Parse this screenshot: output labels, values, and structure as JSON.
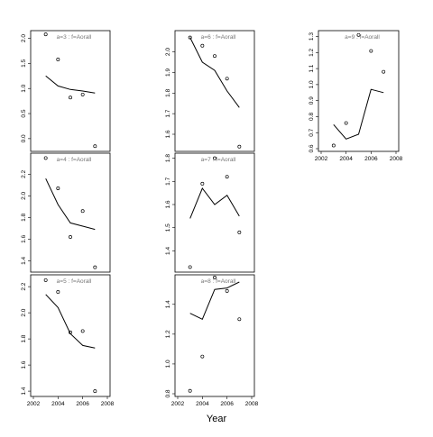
{
  "xlabel": "Year",
  "chart_data": [
    {
      "type": "scatter",
      "title": "a=3  :  f=Aorall",
      "x": [
        2003,
        2004,
        2005,
        2006,
        2007
      ],
      "points": [
        2.08,
        1.58,
        0.82,
        0.88,
        -0.15
      ],
      "line": [
        1.25,
        1.05,
        0.98,
        0.95,
        0.91
      ],
      "xlim": [
        2002,
        2008
      ],
      "ylim": [
        -0.2,
        2.1
      ],
      "xticks": [],
      "yticks": [
        0.0,
        0.5,
        1.0,
        1.5,
        2.0
      ],
      "ytick_labels": [
        "0.0",
        "0.5",
        "1.0",
        "1.5",
        "2.0"
      ]
    },
    {
      "type": "scatter",
      "title": "a=6  :  f=Aorall",
      "x": [
        2003,
        2004,
        2005,
        2006,
        2007
      ],
      "points": [
        2.07,
        2.03,
        1.98,
        1.87,
        1.54
      ],
      "line": [
        2.07,
        1.95,
        1.91,
        1.81,
        1.73
      ],
      "xlim": [
        2002,
        2008
      ],
      "ylim": [
        1.53,
        2.09
      ],
      "xticks": [],
      "yticks": [
        1.6,
        1.7,
        1.8,
        1.9,
        2.0
      ],
      "ytick_labels": [
        "1.6",
        "1.7",
        "1.8",
        "1.9",
        "2.0"
      ]
    },
    {
      "type": "scatter",
      "title": "a=9  :  f=Aorall",
      "x": [
        2003,
        2004,
        2005,
        2006,
        2007
      ],
      "points": [
        0.62,
        0.76,
        1.31,
        1.21,
        1.08
      ],
      "line": [
        0.75,
        0.66,
        0.69,
        0.97,
        0.95
      ],
      "xlim": [
        2002,
        2008
      ],
      "ylim": [
        0.6,
        1.32
      ],
      "xticks": [
        2002,
        2004,
        2006,
        2008
      ],
      "yticks": [
        0.6,
        0.7,
        0.8,
        0.9,
        1.0,
        1.1,
        1.2,
        1.3
      ],
      "ytick_labels": [
        "0.6",
        "0.7",
        "0.8",
        "0.9",
        "1.0",
        "1.1",
        "1.2",
        "1.3"
      ]
    },
    {
      "type": "scatter",
      "title": "a=4  :  f=Aorall",
      "x": [
        2003,
        2004,
        2005,
        2006,
        2007
      ],
      "points": [
        2.35,
        2.07,
        1.62,
        1.86,
        1.34
      ],
      "line": [
        2.16,
        1.92,
        1.75,
        1.72,
        1.69
      ],
      "xlim": [
        2002,
        2008
      ],
      "ylim": [
        1.32,
        2.37
      ],
      "xticks": [],
      "yticks": [
        1.4,
        1.6,
        1.8,
        2.0,
        2.2
      ],
      "ytick_labels": [
        "1.4",
        "1.6",
        "1.8",
        "2.0",
        "2.2"
      ]
    },
    {
      "type": "scatter",
      "title": "a=7  :  f=Aorall",
      "x": [
        2003,
        2004,
        2005,
        2006,
        2007
      ],
      "points": [
        1.33,
        1.69,
        1.8,
        1.72,
        1.48
      ],
      "line": [
        1.54,
        1.67,
        1.6,
        1.64,
        1.55
      ],
      "xlim": [
        2002,
        2008
      ],
      "ylim": [
        1.32,
        1.81
      ],
      "xticks": [],
      "yticks": [
        1.4,
        1.5,
        1.6,
        1.7,
        1.8
      ],
      "ytick_labels": [
        "1.4",
        "1.5",
        "1.6",
        "1.7",
        "1.8"
      ]
    },
    {
      "type": "scatter",
      "title": "a=5  :  f=Aorall",
      "x": [
        2003,
        2004,
        2005,
        2006,
        2007
      ],
      "points": [
        2.25,
        2.16,
        1.85,
        1.86,
        1.4
      ],
      "line": [
        2.14,
        2.04,
        1.84,
        1.75,
        1.73
      ],
      "xlim": [
        2002,
        2008
      ],
      "ylim": [
        1.38,
        2.27
      ],
      "xticks": [
        2002,
        2004,
        2006,
        2008
      ],
      "yticks": [
        1.4,
        1.6,
        1.8,
        2.0,
        2.2
      ],
      "ytick_labels": [
        "1.4",
        "1.6",
        "1.8",
        "2.0",
        "2.2"
      ]
    },
    {
      "type": "scatter",
      "title": "a=8  :  f=Aorall",
      "x": [
        2003,
        2004,
        2005,
        2006,
        2007
      ],
      "points": [
        0.82,
        1.05,
        1.58,
        1.49,
        1.3
      ],
      "line": [
        1.34,
        1.3,
        1.5,
        1.51,
        1.55
      ],
      "xlim": [
        2002,
        2008
      ],
      "ylim": [
        0.8,
        1.58
      ],
      "xticks": [
        2002,
        2004,
        2006,
        2008
      ],
      "yticks": [
        0.8,
        1.0,
        1.2,
        1.4
      ],
      "ytick_labels": [
        "0.8",
        "1.0",
        "1.2",
        "1.4"
      ]
    }
  ]
}
